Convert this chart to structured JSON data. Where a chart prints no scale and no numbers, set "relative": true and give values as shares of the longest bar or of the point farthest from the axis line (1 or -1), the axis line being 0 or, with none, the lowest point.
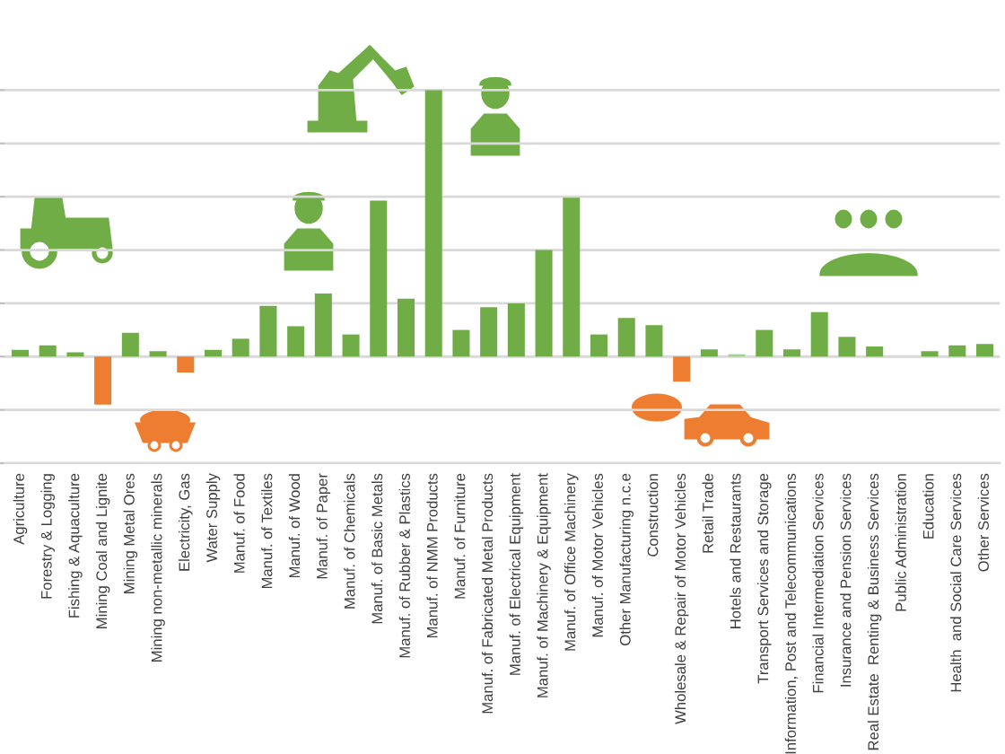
{
  "chart_data": {
    "type": "bar",
    "relative": true,
    "grid": "y",
    "categories": [
      "Agriculture",
      "Forestry & Logging",
      "Fishing & Aquaculture",
      "Mining Coal and Lignite",
      "Mining Metal Ores",
      "Mining non-metallic minerals",
      "Electricity, Gas",
      "Water Supply",
      "Manuf. of Food",
      "Manuf. of Textiles",
      "Manuf. of Wood",
      "Manuf. of Paper",
      "Manuf. of Chemicals",
      "Manuf. of Basic Metals",
      "Manuf. of Rubber & Plastics",
      "Manuf. of NMM Products",
      "Manuf. of Furniture",
      "Manuf. of Fabricated Metal Products",
      "Manuf. of Electrical Equipment",
      "Manuf. of Machinery & Equipment",
      "Manuf. of Office Machinery",
      "Manuf. of Motor Vehicles",
      "Other Manufacturing n.c.e",
      "Construction",
      "Wholesale & Repair of Motor Vehicles",
      "Retail Trade",
      "Hotels and Restaurants",
      "Transport Services and Storage",
      "Information, Post and Telecommunications",
      "Financial Intermediation Services",
      "Insurance and Pension Services",
      "Real Estate  Renting & Business Services",
      "Public Administration",
      "Education",
      "Health  and Social Care Services",
      "Other Services"
    ],
    "values": [
      0.025,
      0.042,
      0.016,
      -0.18,
      0.089,
      0.02,
      -0.06,
      0.025,
      0.067,
      0.19,
      0.114,
      0.237,
      0.083,
      0.585,
      0.217,
      1,
      0.1,
      0.185,
      0.2,
      0.4,
      0.596,
      0.083,
      0.145,
      0.118,
      -0.094,
      0.027,
      0.009,
      0.1,
      0.027,
      0.167,
      0.074,
      0.038,
      0,
      0.02,
      0.042,
      0.047
    ],
    "colors": [
      "#70ad47",
      "#70ad47",
      "#70ad47",
      "#ed7d31",
      "#70ad47",
      "#70ad47",
      "#ed7d31",
      "#70ad47",
      "#70ad47",
      "#70ad47",
      "#70ad47",
      "#70ad47",
      "#70ad47",
      "#70ad47",
      "#70ad47",
      "#70ad47",
      "#70ad47",
      "#70ad47",
      "#70ad47",
      "#70ad47",
      "#70ad47",
      "#70ad47",
      "#70ad47",
      "#70ad47",
      "#ed7d31",
      "#70ad47",
      "#a9d18e",
      "#70ad47",
      "#70ad47",
      "#70ad47",
      "#70ad47",
      "#70ad47",
      "#70ad47",
      "#70ad47",
      "#70ad47",
      "#70ad47"
    ]
  }
}
